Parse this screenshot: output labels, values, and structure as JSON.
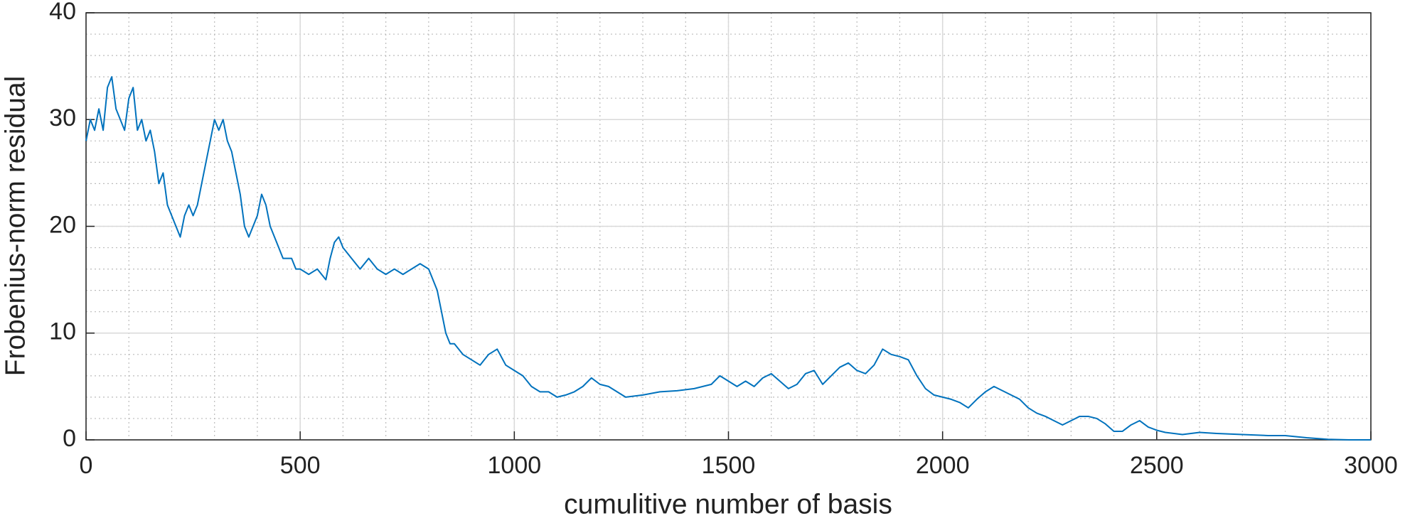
{
  "chart_data": {
    "type": "line",
    "x_label": "cumulitive number of basis",
    "y_label": "Frobenius-norm residual",
    "color": "#0072bd",
    "x": [
      0,
      10,
      20,
      30,
      40,
      50,
      60,
      70,
      80,
      90,
      100,
      110,
      120,
      130,
      140,
      150,
      160,
      170,
      180,
      190,
      200,
      210,
      220,
      230,
      240,
      250,
      260,
      270,
      280,
      290,
      300,
      310,
      320,
      330,
      340,
      350,
      360,
      370,
      380,
      390,
      400,
      410,
      420,
      430,
      440,
      450,
      460,
      470,
      480,
      490,
      500,
      520,
      540,
      560,
      570,
      580,
      590,
      600,
      620,
      640,
      660,
      680,
      700,
      720,
      740,
      760,
      780,
      800,
      820,
      830,
      840,
      850,
      860,
      880,
      900,
      920,
      940,
      960,
      980,
      1000,
      1020,
      1040,
      1060,
      1080,
      1100,
      1120,
      1140,
      1160,
      1180,
      1200,
      1220,
      1240,
      1260,
      1300,
      1340,
      1380,
      1420,
      1460,
      1480,
      1500,
      1520,
      1540,
      1560,
      1580,
      1600,
      1620,
      1640,
      1660,
      1680,
      1700,
      1720,
      1740,
      1760,
      1780,
      1800,
      1820,
      1840,
      1860,
      1880,
      1900,
      1920,
      1940,
      1960,
      1980,
      2000,
      2020,
      2040,
      2060,
      2080,
      2100,
      2120,
      2140,
      2160,
      2180,
      2200,
      2220,
      2240,
      2260,
      2280,
      2300,
      2320,
      2340,
      2360,
      2380,
      2400,
      2420,
      2440,
      2460,
      2480,
      2500,
      2520,
      2560,
      2600,
      2640,
      2700,
      2760,
      2800,
      2850,
      2900,
      2950,
      3000
    ],
    "values": [
      28,
      30,
      29,
      31,
      29,
      33,
      34,
      31,
      30,
      29,
      32,
      33,
      29,
      30,
      28,
      29,
      27,
      24,
      25,
      22,
      21,
      20,
      19,
      21,
      22,
      21,
      22,
      24,
      26,
      28,
      30,
      29,
      30,
      28,
      27,
      25,
      23,
      20,
      19,
      20,
      21,
      23,
      22,
      20,
      19,
      18,
      17,
      17,
      17,
      16,
      16,
      15.5,
      16,
      15,
      17,
      18.5,
      19,
      18,
      17,
      16,
      17,
      16,
      15.5,
      16,
      15.5,
      16,
      16.5,
      16,
      14,
      12,
      10,
      9,
      9,
      8,
      7.5,
      7,
      8,
      8.5,
      7,
      6.5,
      6,
      5,
      4.5,
      4.5,
      4,
      4.2,
      4.5,
      5,
      5.8,
      5.2,
      5,
      4.5,
      4,
      4.2,
      4.5,
      4.6,
      4.8,
      5.2,
      6,
      5.5,
      5,
      5.5,
      5,
      5.8,
      6.2,
      5.5,
      4.8,
      5.2,
      6.2,
      6.5,
      5.2,
      6,
      6.8,
      7.2,
      6.5,
      6.2,
      7,
      8.5,
      8,
      7.8,
      7.5,
      6,
      4.8,
      4.2,
      4,
      3.8,
      3.5,
      3,
      3.8,
      4.5,
      5,
      4.6,
      4.2,
      3.8,
      3,
      2.5,
      2.2,
      1.8,
      1.4,
      1.8,
      2.2,
      2.2,
      2,
      1.5,
      0.8,
      0.8,
      1.4,
      1.8,
      1.2,
      0.9,
      0.7,
      0.5,
      0.7,
      0.6,
      0.5,
      0.4,
      0.4,
      0.2,
      0.05,
      0,
      0
    ],
    "xlim": [
      0,
      3000
    ],
    "xticks": [
      0,
      500,
      1000,
      1500,
      2000,
      2500,
      3000
    ],
    "ylim": [
      0,
      40
    ],
    "yticks": [
      0,
      10,
      20,
      30,
      40
    ],
    "grid": true,
    "minor_grid": true
  }
}
